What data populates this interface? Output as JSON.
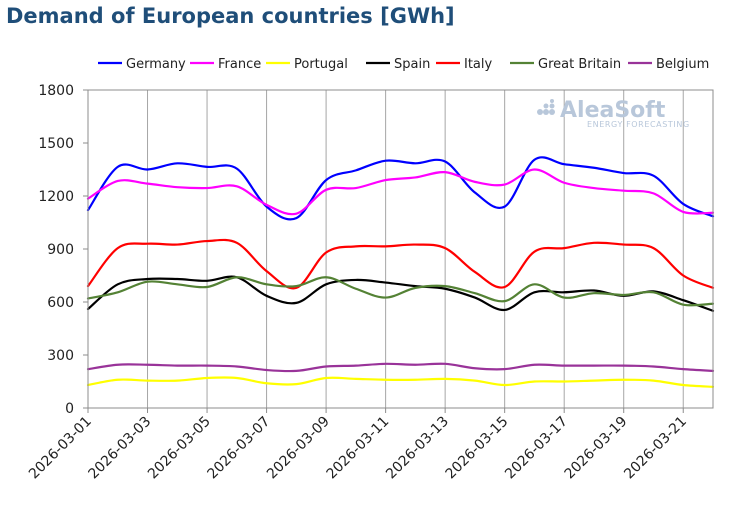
{
  "title": "Demand of European countries [GWh]",
  "watermark": {
    "brand": "AleaSoft",
    "tagline": "ENERGY FORECASTING"
  },
  "chart_data": {
    "type": "line",
    "title": "Demand of European countries [GWh]",
    "xlabel": "",
    "ylabel": "",
    "ylim": [
      0,
      1800
    ],
    "y_ticks": [
      0,
      300,
      600,
      900,
      1200,
      1500,
      1800
    ],
    "x_tick_labels": [
      "2026-03-01",
      "2026-03-03",
      "2026-03-05",
      "2026-03-07",
      "2026-03-09",
      "2026-03-11",
      "2026-03-13",
      "2026-03-15",
      "2026-03-17",
      "2026-03-19",
      "2026-03-21"
    ],
    "x_dates": [
      "2026-03-01",
      "2026-03-02",
      "2026-03-03",
      "2026-03-04",
      "2026-03-05",
      "2026-03-06",
      "2026-03-07",
      "2026-03-08",
      "2026-03-09",
      "2026-03-10",
      "2026-03-11",
      "2026-03-12",
      "2026-03-13",
      "2026-03-14",
      "2026-03-15",
      "2026-03-16",
      "2026-03-17",
      "2026-03-18",
      "2026-03-19",
      "2026-03-20",
      "2026-03-21",
      "2026-03-22"
    ],
    "grid": "vertical",
    "legend_position": "top",
    "series": [
      {
        "name": "Germany",
        "color": "#0000ff",
        "values": [
          1120,
          1365,
          1350,
          1385,
          1365,
          1355,
          1140,
          1075,
          1290,
          1345,
          1400,
          1385,
          1395,
          1220,
          1140,
          1405,
          1380,
          1360,
          1330,
          1315,
          1155,
          1085
        ]
      },
      {
        "name": "France",
        "color": "#ff00ff",
        "values": [
          1185,
          1285,
          1270,
          1250,
          1245,
          1255,
          1150,
          1100,
          1235,
          1245,
          1290,
          1305,
          1335,
          1280,
          1265,
          1350,
          1275,
          1245,
          1230,
          1215,
          1110,
          1105
        ]
      },
      {
        "name": "Portugal",
        "color": "#ffff00",
        "values": [
          130,
          160,
          155,
          155,
          170,
          170,
          140,
          135,
          170,
          165,
          160,
          160,
          165,
          155,
          130,
          150,
          150,
          155,
          160,
          155,
          130,
          120
        ]
      },
      {
        "name": "Spain",
        "color": "#000000",
        "values": [
          560,
          700,
          730,
          730,
          720,
          740,
          635,
          595,
          700,
          725,
          710,
          690,
          675,
          625,
          555,
          655,
          655,
          665,
          635,
          660,
          610,
          550
        ]
      },
      {
        "name": "Italy",
        "color": "#ff0000",
        "values": [
          690,
          905,
          930,
          925,
          945,
          935,
          775,
          680,
          880,
          915,
          915,
          925,
          905,
          770,
          685,
          885,
          905,
          935,
          925,
          905,
          750,
          680
        ]
      },
      {
        "name": "Great Britain",
        "color": "#548235",
        "values": [
          620,
          655,
          715,
          700,
          685,
          740,
          700,
          690,
          740,
          675,
          625,
          680,
          690,
          650,
          605,
          700,
          625,
          650,
          640,
          655,
          585,
          590
        ]
      },
      {
        "name": "Belgium",
        "color": "#993399",
        "values": [
          220,
          245,
          245,
          240,
          240,
          235,
          215,
          210,
          235,
          240,
          250,
          245,
          250,
          225,
          220,
          245,
          240,
          240,
          240,
          235,
          220,
          210
        ]
      }
    ]
  }
}
